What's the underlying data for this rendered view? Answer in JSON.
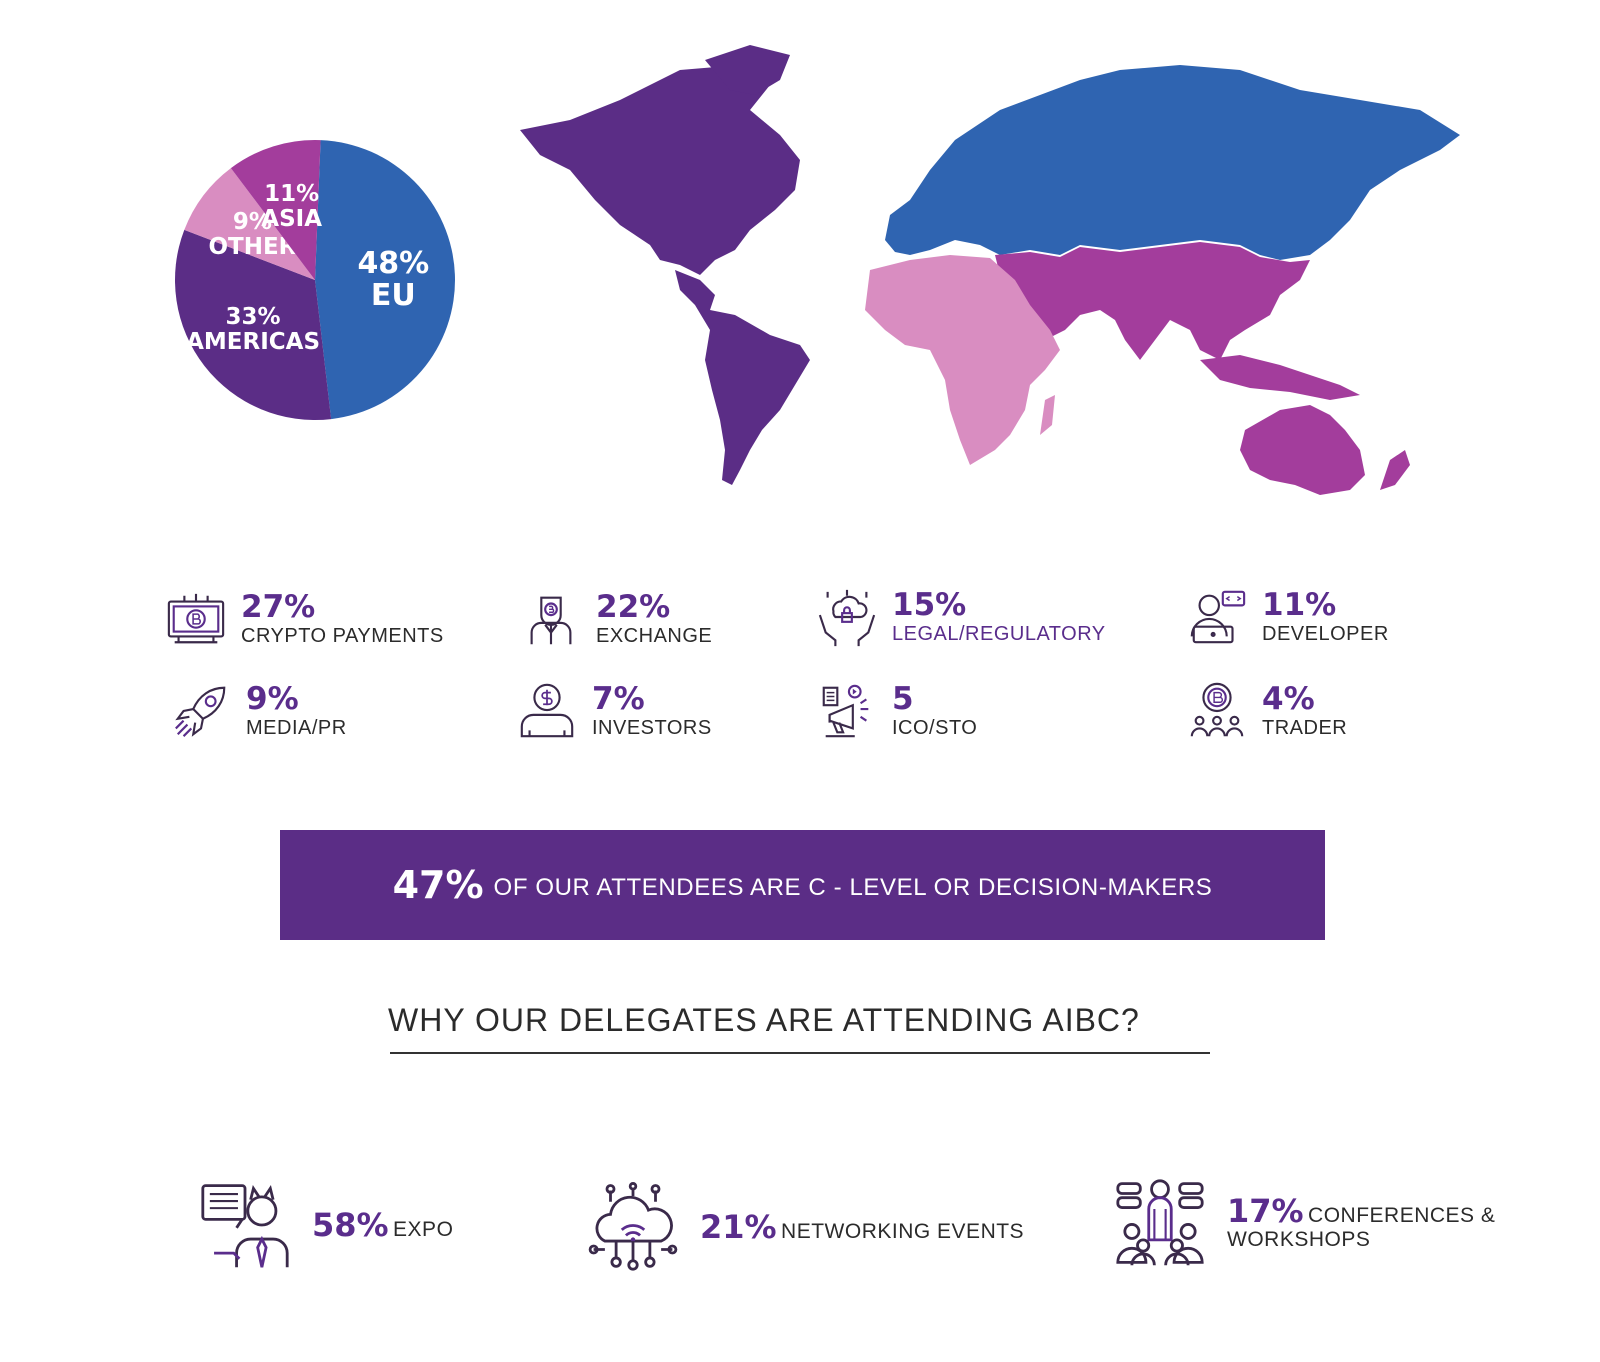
{
  "chart_data": {
    "type": "pie",
    "slices": [
      {
        "label": "EU",
        "value": 48,
        "value_text": "48%",
        "color": "#2f64b1"
      },
      {
        "label": "AMERICAS",
        "value": 33,
        "value_text": "33%",
        "color": "#5b2d86"
      },
      {
        "label": "OTHER",
        "value": 9,
        "value_text": "9%",
        "color": "#d98dc1"
      },
      {
        "label": "ASIA",
        "value": 11,
        "value_text": "11%",
        "color": "#a33d9c"
      }
    ]
  },
  "map_colors": {
    "americas": "#5b2d86",
    "eu": "#2f64b1",
    "asia": "#a33d9c",
    "other": "#d98dc1"
  },
  "roles": [
    {
      "pct": "27%",
      "label": "CRYPTO PAYMENTS",
      "icon": "bitcoin-screen-icon"
    },
    {
      "pct": "22%",
      "label": "EXCHANGE",
      "icon": "exchange-person-icon"
    },
    {
      "pct": "15%",
      "label": "LEGAL/REGULATORY",
      "icon": "secure-cloud-hands-icon"
    },
    {
      "pct": "11%",
      "label": "DEVELOPER",
      "icon": "developer-icon"
    },
    {
      "pct": "9%",
      "label": "MEDIA/PR",
      "icon": "rocket-icon"
    },
    {
      "pct": "7%",
      "label": "INVESTORS",
      "icon": "investor-icon"
    },
    {
      "pct": "5",
      "label": "ICO/STO",
      "icon": "megaphone-icon"
    },
    {
      "pct": "4%",
      "label": "TRADER",
      "icon": "bitcoin-trader-icon"
    }
  ],
  "banner": {
    "pct": "47%",
    "text": "OF OUR ATTENDEES ARE C - LEVEL OR DECISION-MAKERS"
  },
  "heading": "WHY OUR DELEGATES ARE ATTENDING AIBC?",
  "reasons": [
    {
      "pct": "58%",
      "label": "EXPO",
      "icon": "expo-presenter-icon"
    },
    {
      "pct": "21%",
      "label": "NETWORKING EVENTS",
      "icon": "network-cloud-icon"
    },
    {
      "pct": "17%",
      "label": "CONFERENCES & WORKSHOPS",
      "icon": "conference-icon"
    }
  ]
}
